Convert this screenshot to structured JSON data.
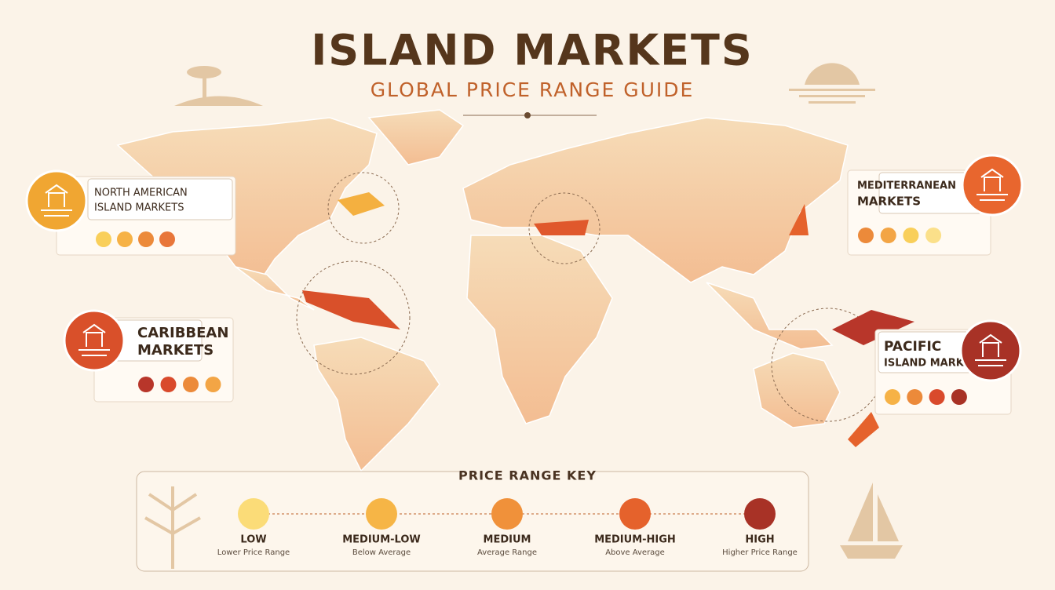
{
  "header": {
    "title": "ISLAND MARKETS",
    "subtitle": "GLOBAL PRICE RANGE GUIDE"
  },
  "regions": [
    {
      "lines": [
        "NORTH AMERICAN",
        "ISLAND MARKETS"
      ],
      "icon_color": "#f0a632",
      "dots": [
        "#f9cf5a",
        "#f6b246",
        "#ec8a3a",
        "#e8763a"
      ]
    },
    {
      "lines": [
        "CARIBBEAN",
        "MARKETS"
      ],
      "icon_color": "#d9502a",
      "dots": [
        "#b8362a",
        "#d94a2c",
        "#ec8a3a",
        "#f3a545"
      ]
    },
    {
      "lines": [
        "MEDITERRANEAN",
        "MARKETS"
      ],
      "icon_color": "#e8662e",
      "dots": [
        "#ec8a3a",
        "#f3a545",
        "#f9cf5a",
        "#fbe08a"
      ]
    },
    {
      "lines": [
        "PACIFIC",
        "ISLAND MARKETS"
      ],
      "icon_color": "#a83226",
      "dots": [
        "#f6b246",
        "#ec8a3a",
        "#d94a2c",
        "#a83226"
      ]
    }
  ],
  "key": {
    "title": "PRICE RANGE KEY",
    "items": [
      {
        "label": "LOW",
        "sub": "Lower Price Range",
        "color": "#fbdc78"
      },
      {
        "label": "MEDIUM-LOW",
        "sub": "Below Average",
        "color": "#f6b546"
      },
      {
        "label": "MEDIUM",
        "sub": "Average Range",
        "color": "#f0913a"
      },
      {
        "label": "MEDIUM-HIGH",
        "sub": "Above Average",
        "color": "#e5622c"
      },
      {
        "label": "HIGH",
        "sub": "Higher Price Range",
        "color": "#a83226"
      }
    ]
  }
}
